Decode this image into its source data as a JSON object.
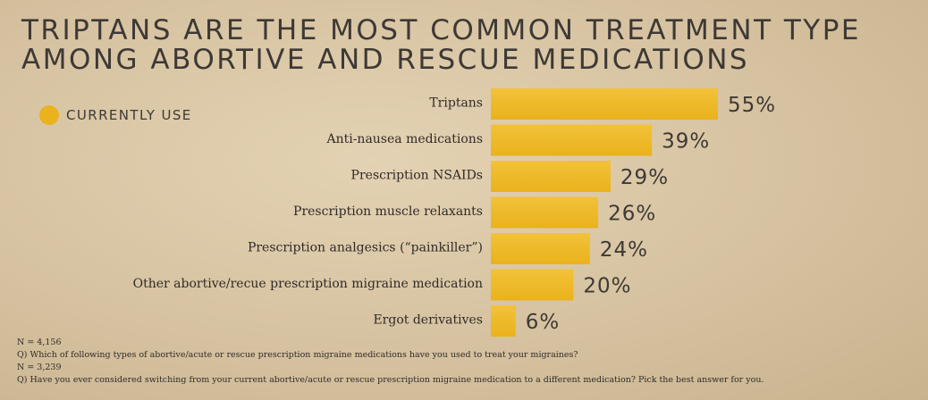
{
  "title_lines": [
    "TRIPTANS ARE THE MOST COMMON TREATMENT TYPE",
    "AMONG ABORTIVE AND RESCUE MEDICATIONS"
  ],
  "legend": {
    "label": "CURRENTLY USE"
  },
  "colors": {
    "bar": "#eab21c",
    "bar_light": "#f2c23a",
    "background": "#d9c6a5"
  },
  "chart_data": {
    "type": "bar",
    "orientation": "horizontal",
    "title": "TRIPTANS ARE THE MOST COMMON TREATMENT TYPE AMONG ABORTIVE AND RESCUE MEDICATIONS",
    "categories": [
      "Triptans",
      "Anti-nausea medications",
      "Prescription NSAIDs",
      "Prescription muscle relaxants",
      "Prescription analgesics (“painkiller”)",
      "Other abortive/recue prescription migraine medication",
      "Ergot derivatives"
    ],
    "series": [
      {
        "name": "CURRENTLY USE",
        "values": [
          55,
          39,
          29,
          26,
          24,
          20,
          6
        ]
      }
    ],
    "value_labels": [
      "55%",
      "39%",
      "29%",
      "26%",
      "24%",
      "20%",
      "6%"
    ],
    "unit": "%",
    "xlim": [
      0,
      55
    ],
    "grid": false,
    "legend_position": "top-left"
  },
  "notes": [
    "N = 4,156",
    "Q) Which of following types of abortive/acute or rescue prescription migraine medications have you used to treat your migraines?",
    "N = 3,239",
    "Q) Have you ever considered switching from your current abortive/acute or rescue prescription migraine medication to a different medication? Pick the best answer for you."
  ]
}
